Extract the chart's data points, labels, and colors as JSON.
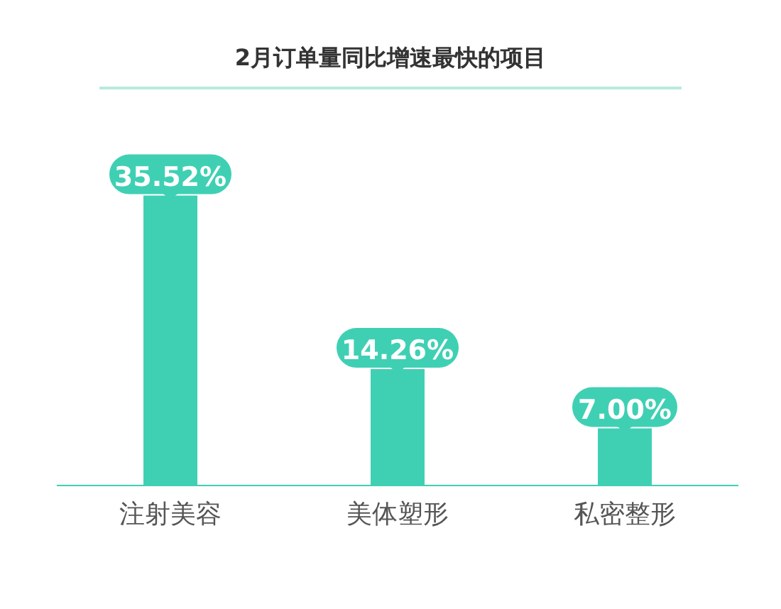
{
  "chart_data": {
    "type": "bar",
    "title": "2月订单量同比增速最快的项目",
    "categories": [
      "注射美容",
      "美体塑形",
      "私密整形"
    ],
    "values": [
      35.52,
      14.26,
      7.0
    ],
    "value_labels": [
      "35.52%",
      "14.26%",
      "7.00%"
    ],
    "color": "#3fd0b4",
    "ylim": [
      0,
      40
    ]
  }
}
